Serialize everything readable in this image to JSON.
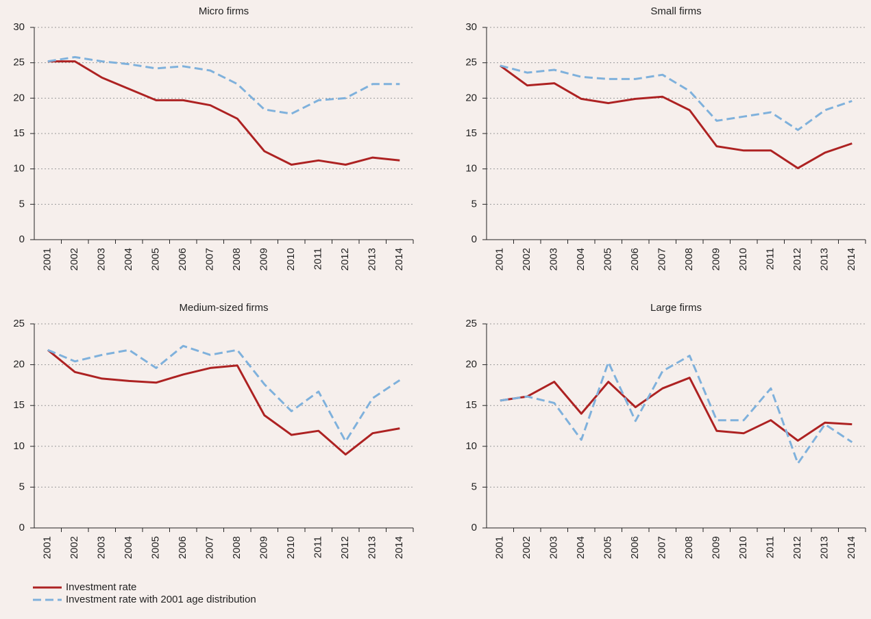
{
  "chart_data": [
    {
      "type": "line",
      "title": "Micro firms",
      "categories": [
        "2001",
        "2002",
        "2003",
        "2004",
        "2005",
        "2006",
        "2007",
        "2008",
        "2009",
        "2010",
        "2011",
        "2012",
        "2013",
        "2014"
      ],
      "series": [
        {
          "name": "Investment rate",
          "color": "#ad2222",
          "dash": false,
          "values": [
            25.2,
            25.2,
            22.9,
            21.3,
            19.7,
            19.7,
            19.0,
            17.1,
            12.5,
            10.6,
            11.2,
            10.6,
            11.6,
            11.2
          ]
        },
        {
          "name": "Investment rate with 2001 age distribution",
          "color": "#7fb1dc",
          "dash": true,
          "values": [
            25.2,
            25.8,
            25.2,
            24.8,
            24.2,
            24.5,
            23.9,
            22.0,
            18.4,
            17.8,
            19.7,
            20.0,
            22.0,
            22.0
          ]
        }
      ],
      "ylim": [
        0,
        30
      ],
      "yticks": [
        0,
        5,
        10,
        15,
        20,
        25,
        30
      ],
      "grid": true
    },
    {
      "type": "line",
      "title": "Small firms",
      "categories": [
        "2001",
        "2002",
        "2003",
        "2004",
        "2005",
        "2006",
        "2007",
        "2008",
        "2009",
        "2010",
        "2011",
        "2012",
        "2013",
        "2014"
      ],
      "series": [
        {
          "color": "#ad2222",
          "dash": false,
          "values": [
            24.6,
            21.8,
            22.1,
            19.9,
            19.3,
            19.9,
            20.2,
            18.3,
            13.2,
            12.6,
            12.6,
            10.1,
            12.3,
            13.6
          ]
        },
        {
          "color": "#7fb1dc",
          "dash": true,
          "values": [
            24.6,
            23.6,
            24.0,
            23.0,
            22.7,
            22.7,
            23.3,
            21.0,
            16.8,
            17.4,
            18.0,
            15.5,
            18.3,
            19.6
          ]
        }
      ],
      "ylim": [
        0,
        30
      ],
      "yticks": [
        0,
        5,
        10,
        15,
        20,
        25,
        30
      ],
      "grid": true
    },
    {
      "type": "line",
      "title": "Medium-sized firms",
      "categories": [
        "2001",
        "2002",
        "2003",
        "2004",
        "2005",
        "2006",
        "2007",
        "2008",
        "2009",
        "2010",
        "2011",
        "2012",
        "2013",
        "2014"
      ],
      "series": [
        {
          "color": "#ad2222",
          "dash": false,
          "values": [
            21.8,
            19.1,
            18.3,
            18.0,
            17.8,
            18.8,
            19.6,
            19.9,
            13.8,
            11.4,
            11.9,
            9.0,
            11.6,
            12.2
          ]
        },
        {
          "color": "#7fb1dc",
          "dash": true,
          "values": [
            21.8,
            20.4,
            21.2,
            21.8,
            19.6,
            22.3,
            21.2,
            21.8,
            17.6,
            14.3,
            16.7,
            10.6,
            15.9,
            18.1
          ]
        }
      ],
      "ylim": [
        0,
        25
      ],
      "yticks": [
        0,
        5,
        10,
        15,
        20,
        25
      ],
      "grid": true
    },
    {
      "type": "line",
      "title": "Large firms",
      "categories": [
        "2001",
        "2002",
        "2003",
        "2004",
        "2005",
        "2006",
        "2007",
        "2008",
        "2009",
        "2010",
        "2011",
        "2012",
        "2013",
        "2014"
      ],
      "series": [
        {
          "color": "#ad2222",
          "dash": false,
          "values": [
            15.6,
            16.1,
            17.9,
            14.0,
            17.9,
            14.8,
            17.1,
            18.4,
            11.9,
            11.6,
            13.2,
            10.7,
            12.9,
            12.7
          ]
        },
        {
          "color": "#7fb1dc",
          "dash": true,
          "values": [
            15.6,
            16.1,
            15.3,
            10.8,
            20.3,
            13.1,
            19.2,
            21.1,
            13.2,
            13.2,
            17.1,
            7.9,
            12.7,
            10.5
          ]
        }
      ],
      "ylim": [
        0,
        25
      ],
      "yticks": [
        0,
        5,
        10,
        15,
        20,
        25
      ],
      "grid": true
    }
  ]
}
